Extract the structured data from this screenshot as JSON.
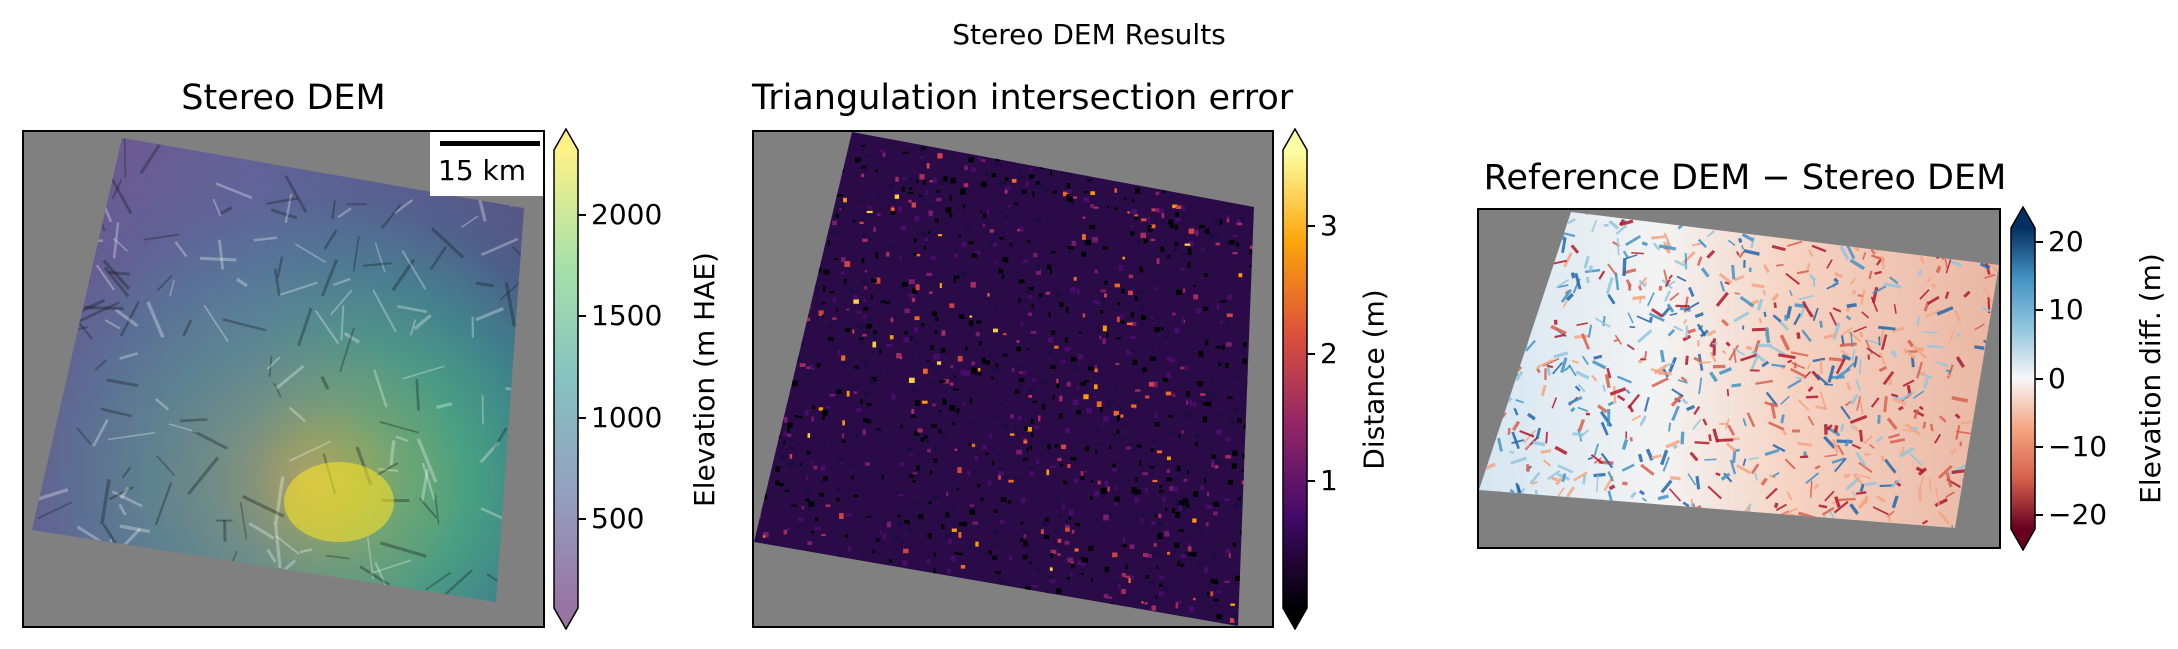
{
  "figure": {
    "suptitle": "Stereo DEM Results"
  },
  "chart_data": [
    {
      "type": "heatmap",
      "title": "Stereo DEM",
      "colormap": "viridis (alpha, over hillshade)",
      "colorbar": {
        "label": "Elevation (m HAE)",
        "range": [
          60,
          2320
        ],
        "ticks": [
          500,
          1000,
          1500,
          2000
        ],
        "tick_labels": [
          "500",
          "1000",
          "1500",
          "2000"
        ],
        "extend": "both"
      },
      "scalebar": {
        "label": "15 km"
      },
      "axes_background": "#808080"
    },
    {
      "type": "heatmap",
      "title": "Triangulation intersection error",
      "colormap": "inferno",
      "colorbar": {
        "label": "Distance (m)",
        "range": [
          0,
          3.6
        ],
        "ticks": [
          1,
          2,
          3
        ],
        "tick_labels": [
          "1",
          "2",
          "3"
        ],
        "extend": "both"
      },
      "axes_background": "#808080"
    },
    {
      "type": "heatmap",
      "title": "Reference DEM − Stereo DEM",
      "colormap": "RdBu",
      "colorbar": {
        "label": "Elevation diff. (m)",
        "range": [
          -22,
          22
        ],
        "ticks": [
          -20,
          -10,
          0,
          10,
          20
        ],
        "tick_labels": [
          "−20",
          "−10",
          "0",
          "10",
          "20"
        ],
        "extend": "both"
      },
      "axes_background": "#808080"
    }
  ]
}
